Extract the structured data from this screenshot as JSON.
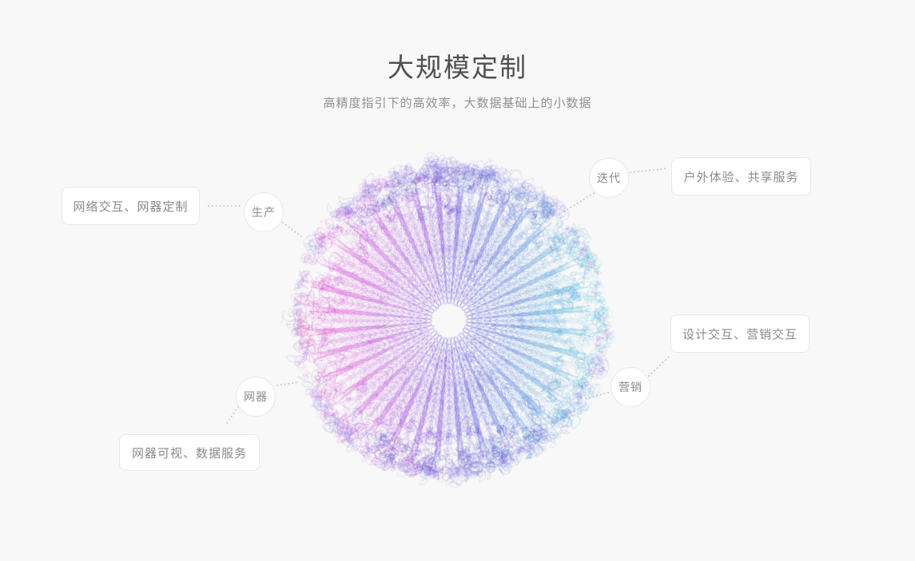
{
  "header": {
    "title": "大规模定制",
    "subtitle": "高精度指引下的高效率，大数据基础上的小数据"
  },
  "cards": {
    "left": "网络交互、网器定制",
    "top_right": "户外体验、共享服务",
    "right": "设计交互、营销交互",
    "bottom_left": "网器可视、数据服务"
  },
  "nodes": {
    "production": "生产",
    "iteration": "迭代",
    "marketing": "营销",
    "device": "网器"
  },
  "colors": {
    "background": "#f8f8f8",
    "card_background": "#ffffff",
    "card_border": "#e8e8e8",
    "label_text": "#8a8a8a",
    "title_text": "#505050",
    "subtitle_text": "#909090",
    "connector_dots": "#cccccc",
    "sphere_left": "#c455be",
    "sphere_mid": "#5c6cc6",
    "sphere_right": "#3ec9e0",
    "sphere_fringe": "#8f90dc"
  },
  "sphere_hues": [
    312,
    272,
    240,
    186
  ]
}
